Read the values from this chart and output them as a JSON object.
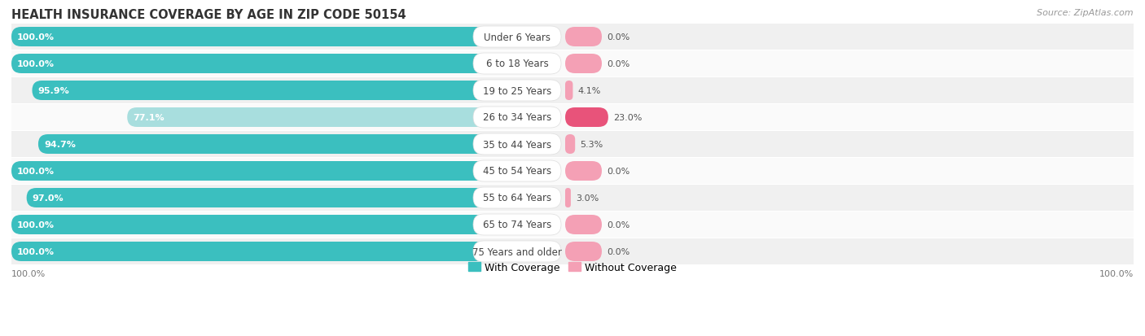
{
  "title": "HEALTH INSURANCE COVERAGE BY AGE IN ZIP CODE 50154",
  "source": "Source: ZipAtlas.com",
  "categories": [
    "Under 6 Years",
    "6 to 18 Years",
    "19 to 25 Years",
    "26 to 34 Years",
    "35 to 44 Years",
    "45 to 54 Years",
    "55 to 64 Years",
    "65 to 74 Years",
    "75 Years and older"
  ],
  "with_coverage": [
    100.0,
    100.0,
    95.9,
    77.1,
    94.7,
    100.0,
    97.0,
    100.0,
    100.0
  ],
  "without_coverage": [
    0.0,
    0.0,
    4.1,
    23.0,
    5.3,
    0.0,
    3.0,
    0.0,
    0.0
  ],
  "color_with": "#3bbfbf",
  "color_with_light": "#a8dede",
  "color_without": "#f4a0b5",
  "color_without_hot": "#e8537a",
  "bg_even": "#f0f0f0",
  "bg_odd": "#fafafa",
  "title_fontsize": 10.5,
  "label_fontsize": 8.5,
  "bar_label_fontsize": 8,
  "legend_fontsize": 9,
  "source_fontsize": 8,
  "axis_label_fontsize": 8
}
